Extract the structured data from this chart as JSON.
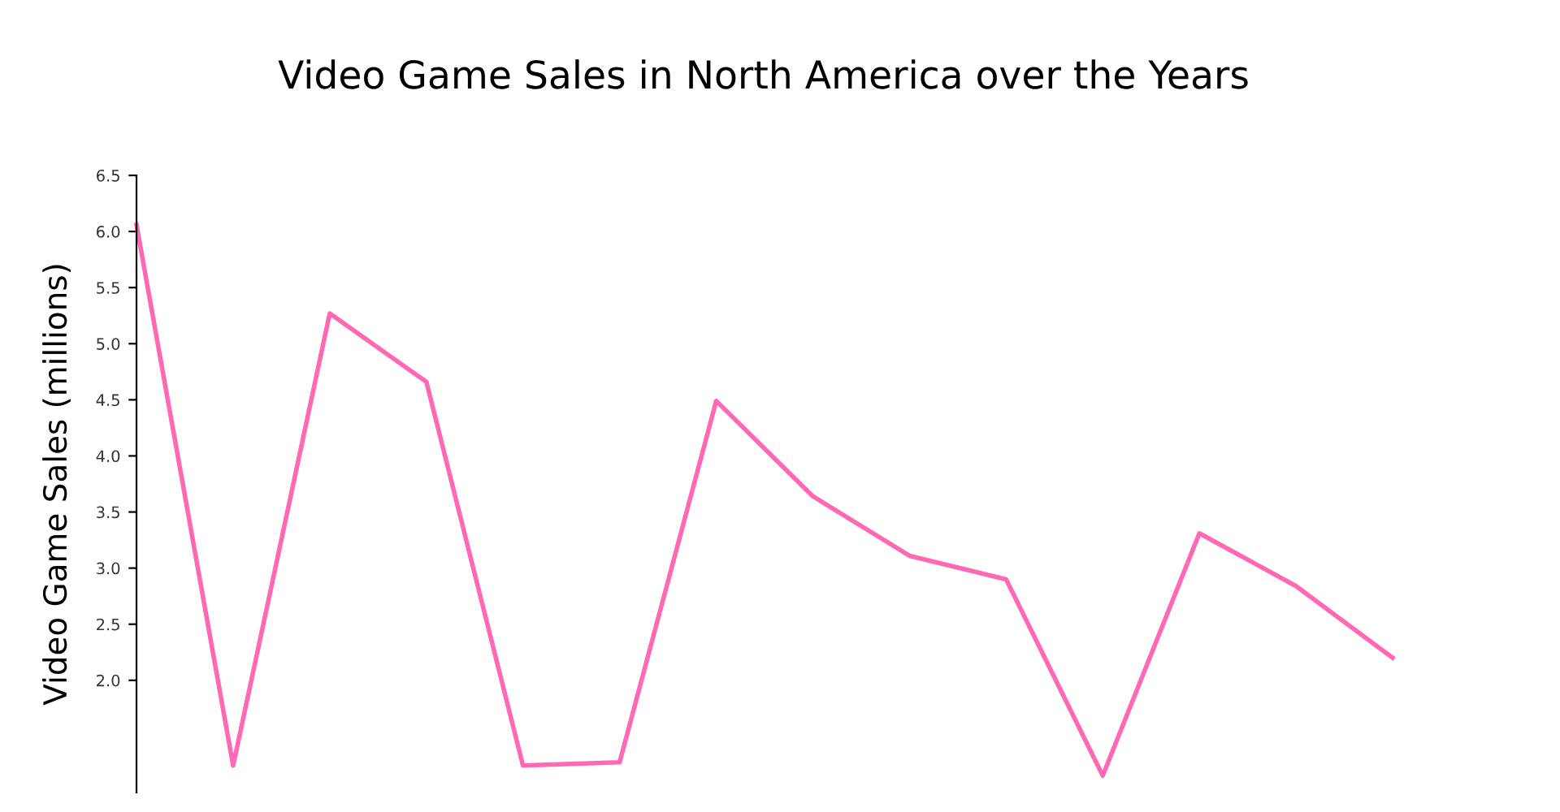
{
  "chart_data": {
    "type": "line",
    "title": "Video Game Sales in North America over the Years",
    "ylabel": "Video Game Sales (millions)",
    "categories": [
      null,
      null,
      null,
      null,
      null,
      null,
      null,
      null,
      null,
      null,
      null,
      null,
      null,
      null
    ],
    "series": [
      {
        "color": "#ff69b4",
        "values": [
          6.06,
          1.24,
          5.27,
          4.66,
          1.24,
          1.27,
          4.49,
          3.64,
          3.11,
          2.9,
          1.15,
          3.31,
          2.84,
          2.2
        ]
      }
    ],
    "ylim": [
      1.0,
      6.5
    ],
    "yticks": [
      {
        "value": 2.0,
        "label": "2.0"
      },
      {
        "value": 2.5,
        "label": "2.5"
      },
      {
        "value": 3.0,
        "label": "3.0"
      },
      {
        "value": 3.5,
        "label": "3.5"
      },
      {
        "value": 4.0,
        "label": "4.0"
      },
      {
        "value": 4.5,
        "label": "4.5"
      },
      {
        "value": 5.0,
        "label": "5.0"
      },
      {
        "value": 5.5,
        "label": "5.5"
      },
      {
        "value": 6.0,
        "label": "6.0"
      },
      {
        "value": 6.5,
        "label": "6.5"
      }
    ],
    "grid": false,
    "legend": false
  }
}
